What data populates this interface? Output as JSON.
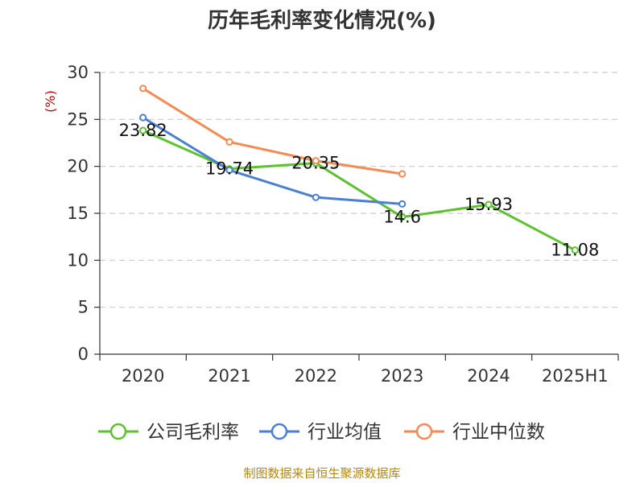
{
  "chart_data": {
    "type": "line",
    "title": "历年毛利率变化情况(%)",
    "ylabel": "(%)",
    "xlabel": "",
    "categories": [
      "2020",
      "2021",
      "2022",
      "2023",
      "2024",
      "2025H1"
    ],
    "ylim": [
      0,
      30
    ],
    "yticks": [
      0,
      5,
      10,
      15,
      20,
      25,
      30
    ],
    "grid": true,
    "legend_position": "bottom",
    "series": [
      {
        "name": "公司毛利率",
        "color": "#5cc32e",
        "values": [
          23.82,
          19.74,
          20.35,
          14.6,
          15.93,
          11.08
        ],
        "labels": [
          "23.82",
          "19.74",
          "20.35",
          "14.6",
          "15.93",
          "11.08"
        ]
      },
      {
        "name": "行业均值",
        "color": "#4a7fd8",
        "values": [
          25.2,
          19.6,
          16.7,
          16.0,
          null,
          null
        ]
      },
      {
        "name": "行业中位数",
        "color": "#f58a52",
        "values": [
          28.3,
          22.6,
          20.6,
          19.2,
          null,
          null
        ]
      }
    ]
  },
  "source": "制图数据来自恒生聚源数据库"
}
